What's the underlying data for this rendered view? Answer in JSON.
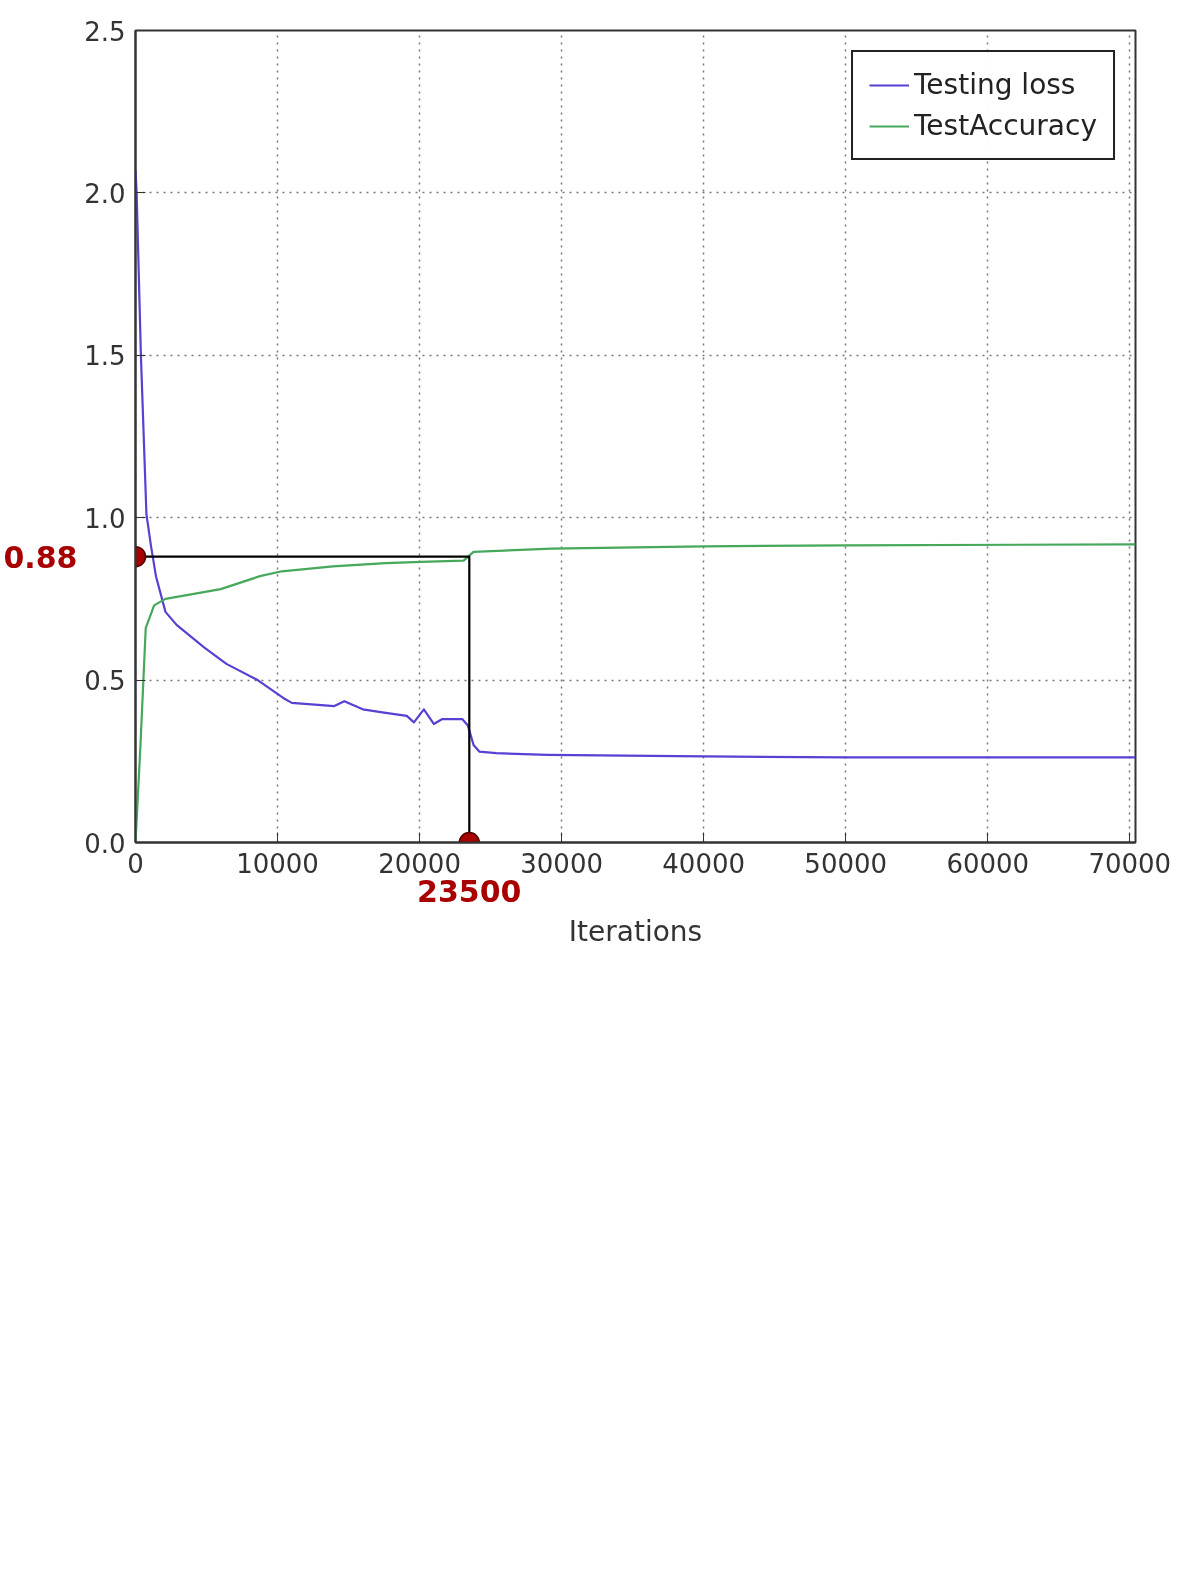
{
  "chart_data": {
    "type": "line",
    "xlabel": "Iterations",
    "xlim": [
      0,
      70400
    ],
    "ylim": [
      0,
      2.5
    ],
    "xticks": [
      0,
      10000,
      20000,
      30000,
      40000,
      50000,
      60000,
      70000
    ],
    "yticks": [
      {
        "value": 0,
        "label": "0.0"
      },
      0.5,
      {
        "value": 1,
        "label": "1.0"
      },
      1.5,
      {
        "value": 2,
        "label": "2.0"
      },
      2.5
    ],
    "grid": true,
    "legend": "top right",
    "line_style": "solid",
    "series": [
      {
        "name": "Testing loss",
        "color": "#5a3fd3",
        "x": [
          0,
          80,
          380,
          770,
          1100,
          1440,
          2110,
          2890,
          4850,
          6400,
          8600,
          10400,
          11000,
          14000,
          14700,
          16000,
          17500,
          19100,
          19600,
          20300,
          21000,
          21600,
          23000,
          23400,
          23800,
          24200,
          25400,
          29000,
          40000,
          50000,
          70400
        ],
        "values": [
          2.07,
          2.0,
          1.5,
          1.01,
          0.91,
          0.82,
          0.71,
          0.67,
          0.6,
          0.55,
          0.5,
          0.445,
          0.43,
          0.42,
          0.435,
          0.41,
          0.4,
          0.39,
          0.37,
          0.41,
          0.365,
          0.38,
          0.38,
          0.36,
          0.3,
          0.28,
          0.275,
          0.27,
          0.265,
          0.262,
          0.262
        ]
      },
      {
        "name": "TestAccuracy",
        "color": "#45a85a",
        "x": [
          0,
          350,
          720,
          1310,
          2110,
          6000,
          8760,
          10300,
          13900,
          17600,
          20100,
          23100,
          23800,
          29300,
          40000,
          50000,
          70400
        ],
        "values": [
          0.0,
          0.3,
          0.66,
          0.73,
          0.75,
          0.78,
          0.82,
          0.835,
          0.85,
          0.86,
          0.864,
          0.868,
          0.895,
          0.905,
          0.912,
          0.915,
          0.918
        ]
      },
      {
        "type": "line",
        "color": "#000000",
        "x": [
          0,
          23500,
          23500
        ],
        "values": [
          0.88,
          0.88,
          0
        ]
      },
      {
        "type": "scatter",
        "color": "#a80000",
        "marker": "circle",
        "x": [
          0,
          23500
        ],
        "values": [
          0.88,
          0
        ]
      }
    ],
    "annotations": [
      {
        "text": "0.88",
        "x": 0,
        "y": 0.88
      },
      {
        "text": "23500",
        "x": 23500,
        "y": 0
      }
    ]
  }
}
